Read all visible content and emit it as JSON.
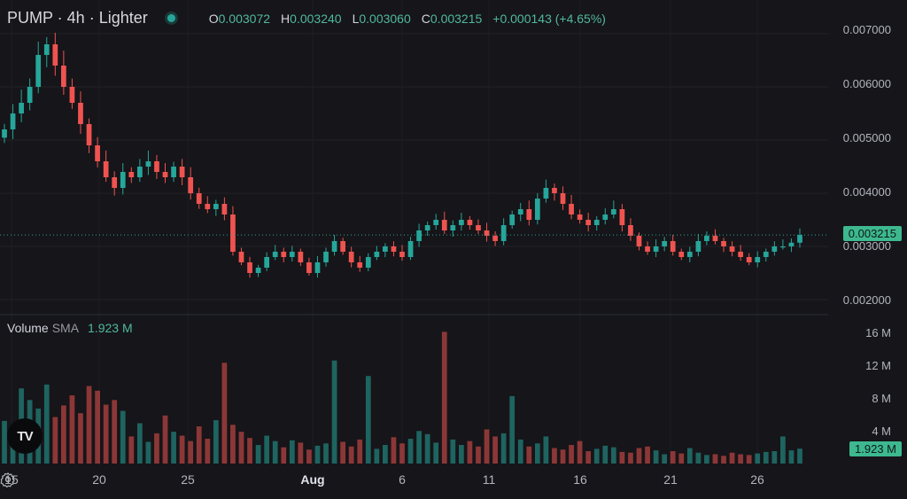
{
  "header": {
    "symbol_title": "PUMP · 4h · Lighter",
    "open_label": "O",
    "open_value": "0.003072",
    "high_label": "H",
    "high_value": "0.003240",
    "low_label": "L",
    "low_value": "0.003060",
    "close_label": "C",
    "close_value": "0.003215",
    "change": "+0.000143 (+4.65%)"
  },
  "volume_header": {
    "label": "Volume",
    "sma_label": "SMA",
    "value": "1.923 M"
  },
  "price_axis": [
    "0.007000",
    "0.006000",
    "0.005000",
    "0.004000",
    "0.003000",
    "0.002000"
  ],
  "price_tag": "0.003215",
  "volume_axis": [
    "16 M",
    "12 M",
    "8 M",
    "4 M"
  ],
  "volume_tag": "1.923 M",
  "x_axis": [
    "15",
    "20",
    "25",
    "Aug",
    "6",
    "11",
    "16",
    "21",
    "26"
  ],
  "icons": {
    "logo": "tradingview-logo-icon",
    "settings": "gear-icon"
  },
  "colors": {
    "up": "#26a69a",
    "down": "#ef5350",
    "background": "#161519"
  },
  "chart_data": {
    "type": "candlestick",
    "timeframe": "4h",
    "x_ticks": [
      "15",
      "20",
      "25",
      "Aug",
      "6",
      "11",
      "16",
      "21",
      "26"
    ],
    "price_range": [
      0.0018,
      0.0073
    ],
    "volume_range_m": [
      0,
      17.5
    ],
    "last_close": 0.003215,
    "closes": [
      0.0052,
      0.0055,
      0.0057,
      0.006,
      0.0066,
      0.0068,
      0.0064,
      0.006,
      0.0057,
      0.0053,
      0.0049,
      0.0046,
      0.0043,
      0.0041,
      0.0044,
      0.0043,
      0.0045,
      0.0046,
      0.0044,
      0.0043,
      0.0045,
      0.0043,
      0.004,
      0.0038,
      0.0037,
      0.0038,
      0.0036,
      0.0029,
      0.0027,
      0.0025,
      0.0026,
      0.0028,
      0.0029,
      0.0028,
      0.0029,
      0.0027,
      0.0025,
      0.0027,
      0.0029,
      0.0031,
      0.0029,
      0.0027,
      0.0026,
      0.0028,
      0.0029,
      0.003,
      0.0029,
      0.0028,
      0.0031,
      0.0033,
      0.0034,
      0.0035,
      0.0033,
      0.0034,
      0.0035,
      0.0034,
      0.0033,
      0.0032,
      0.0031,
      0.0034,
      0.0036,
      0.0037,
      0.0035,
      0.0039,
      0.0041,
      0.004,
      0.0038,
      0.0036,
      0.0035,
      0.0034,
      0.0035,
      0.0036,
      0.0037,
      0.0034,
      0.0032,
      0.003,
      0.0029,
      0.003,
      0.0031,
      0.0029,
      0.0028,
      0.0029,
      0.0031,
      0.0032,
      0.0031,
      0.003,
      0.0029,
      0.0028,
      0.0027,
      0.0028,
      0.0029,
      0.003,
      0.003,
      0.00307,
      0.003215
    ],
    "volumes_m": [
      5.5,
      4.8,
      9.7,
      8.2,
      7.1,
      10.2,
      6.0,
      7.5,
      8.8,
      6.5,
      10.0,
      9.4,
      7.6,
      8.2,
      6.8,
      3.5,
      5.2,
      2.8,
      3.9,
      6.2,
      4.1,
      3.6,
      2.9,
      4.8,
      3.2,
      5.6,
      13.0,
      5.0,
      4.1,
      3.3,
      2.4,
      3.6,
      2.9,
      2.1,
      3.0,
      2.7,
      1.8,
      2.3,
      2.6,
      13.3,
      2.8,
      2.2,
      3.1,
      11.3,
      1.9,
      2.4,
      3.4,
      2.6,
      3.2,
      4.2,
      3.8,
      2.7,
      17.0,
      3.1,
      2.4,
      2.9,
      2.2,
      4.4,
      3.5,
      3.9,
      8.7,
      3.1,
      2.2,
      2.6,
      3.5,
      2.0,
      1.8,
      2.4,
      2.9,
      1.6,
      1.9,
      2.3,
      2.1,
      1.5,
      1.4,
      2.0,
      2.2,
      1.7,
      1.2,
      1.6,
      1.3,
      2.0,
      1.4,
      1.1,
      1.2,
      1.0,
      1.4,
      1.2,
      1.1,
      1.3,
      1.5,
      1.6,
      3.5,
      1.7,
      1.923
    ]
  }
}
